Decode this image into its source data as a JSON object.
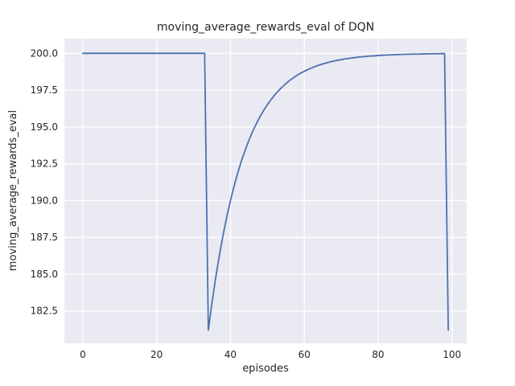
{
  "chart_data": {
    "type": "line",
    "title": "moving_average_rewards_eval of DQN",
    "xlabel": "episodes",
    "ylabel": "moving_average_rewards_eval",
    "x_ticks": [
      0,
      20,
      40,
      60,
      80,
      100
    ],
    "y_ticks": [
      182.5,
      185.0,
      187.5,
      190.0,
      192.5,
      195.0,
      197.5,
      200.0
    ],
    "xlim": [
      -5,
      104
    ],
    "ylim": [
      180.3,
      201.0
    ],
    "grid": true,
    "legend": "none",
    "line_color": "#4c72b0",
    "axes_bg": "#eaeaf2",
    "grid_color": "#ffffff",
    "text_color": "#262626",
    "x": [
      0,
      1,
      2,
      3,
      4,
      5,
      6,
      7,
      8,
      9,
      10,
      11,
      12,
      13,
      14,
      15,
      16,
      17,
      18,
      19,
      20,
      21,
      22,
      23,
      24,
      25,
      26,
      27,
      28,
      29,
      30,
      31,
      32,
      33,
      34,
      35,
      36,
      37,
      38,
      39,
      40,
      41,
      42,
      43,
      44,
      45,
      46,
      47,
      48,
      49,
      50,
      51,
      52,
      53,
      54,
      55,
      56,
      57,
      58,
      59,
      60,
      61,
      62,
      63,
      64,
      65,
      66,
      67,
      68,
      69,
      70,
      71,
      72,
      73,
      74,
      75,
      76,
      77,
      78,
      79,
      80,
      81,
      82,
      83,
      84,
      85,
      86,
      87,
      88,
      89,
      90,
      91,
      92,
      93,
      94,
      95,
      96,
      97,
      98,
      99
    ],
    "y": [
      200,
      200,
      200,
      200,
      200,
      200,
      200,
      200,
      200,
      200,
      200,
      200,
      200,
      200,
      200,
      200,
      200,
      200,
      200,
      200,
      200,
      200,
      200,
      200,
      200,
      200,
      200,
      200,
      200,
      200,
      200,
      200,
      200,
      200,
      181.2,
      183.08,
      184.77,
      186.29,
      187.66,
      188.9,
      190.01,
      191.01,
      191.91,
      192.72,
      193.44,
      194.1,
      194.69,
      195.22,
      195.7,
      196.13,
      196.51,
      196.86,
      197.18,
      197.46,
      197.71,
      197.94,
      198.15,
      198.33,
      198.5,
      198.65,
      198.78,
      198.9,
      199.01,
      199.11,
      199.2,
      199.28,
      199.35,
      199.42,
      199.48,
      199.53,
      199.57,
      199.62,
      199.65,
      199.69,
      199.72,
      199.75,
      199.77,
      199.8,
      199.82,
      199.83,
      199.85,
      199.87,
      199.88,
      199.89,
      199.9,
      199.91,
      199.92,
      199.93,
      199.94,
      199.94,
      199.95,
      199.95,
      199.96,
      199.96,
      199.97,
      199.97,
      199.97,
      199.98,
      199.98,
      181.2
    ]
  }
}
